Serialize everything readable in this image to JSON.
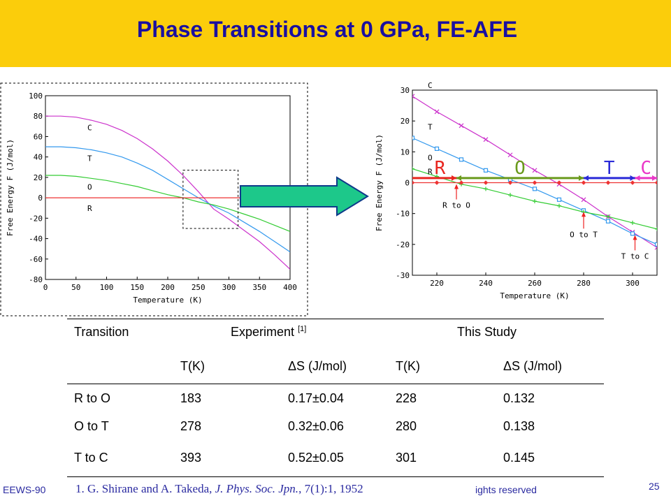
{
  "slide": {
    "title": "Phase Transitions at 0 GPa, FE-AFE",
    "page_number": "25",
    "footer_left": "EEWS-90",
    "footer_right": "ights reserved",
    "reference": {
      "number": "1.",
      "authors": "G. Shirane and A. Takeda,",
      "journal": "J. Phys. Soc. Jpn.",
      "details": ", 7(1):1, 1952"
    }
  },
  "colors": {
    "title_bar": "#fbcd0b",
    "title_text": "#1a0fa0",
    "C": "#cc33cc",
    "T": "#3399ee",
    "O": "#33cc33",
    "R": "#ee3333",
    "arrow_fill": "#1dc88a",
    "phase_R": "#e8261f",
    "phase_O": "#6a9a1c",
    "phase_T": "#2a2ad8",
    "phase_C": "#ea38c8"
  },
  "chart_data": [
    {
      "type": "line",
      "title": "",
      "xlabel": "Temperature (K)",
      "ylabel": "Free Energy F (J/mol)",
      "xlim": [
        0,
        400
      ],
      "ylim": [
        -80,
        100
      ],
      "xticks": [
        0,
        50,
        100,
        150,
        200,
        250,
        300,
        350,
        400
      ],
      "yticks": [
        -80,
        -60,
        -40,
        -20,
        0,
        20,
        40,
        60,
        80,
        100
      ],
      "grid": false,
      "legend": "inline labels at left",
      "x": [
        0,
        25,
        50,
        75,
        100,
        125,
        150,
        175,
        200,
        225,
        250,
        275,
        300,
        325,
        350,
        375,
        400
      ],
      "series": [
        {
          "name": "C",
          "values": [
            80,
            80,
            79,
            76,
            72,
            66,
            58,
            48,
            36,
            22,
            6,
            -11,
            -21,
            -32,
            -43,
            -56,
            -70
          ]
        },
        {
          "name": "T",
          "values": [
            50,
            50,
            49,
            47,
            44,
            40,
            34,
            27,
            18,
            9,
            0,
            -8,
            -15,
            -24,
            -33,
            -43,
            -53
          ]
        },
        {
          "name": "O",
          "values": [
            22,
            22,
            21,
            19,
            17,
            14,
            11,
            7,
            3,
            0,
            -4,
            -7,
            -11,
            -16,
            -21,
            -27,
            -33
          ]
        },
        {
          "name": "R",
          "values": [
            0,
            0,
            0,
            0,
            0,
            0,
            0,
            0,
            0,
            0,
            0,
            0,
            0,
            0,
            0,
            0,
            0
          ]
        }
      ]
    },
    {
      "type": "line",
      "title": "",
      "xlabel": "Temperature (K)",
      "ylabel": "Free Energy F (J/mol)",
      "xlim": [
        210,
        310
      ],
      "ylim": [
        -30,
        30
      ],
      "xticks": [
        220,
        240,
        260,
        280,
        300
      ],
      "yticks": [
        -30,
        -20,
        -10,
        0,
        10,
        20,
        30
      ],
      "grid": false,
      "legend": "inline labels at left",
      "x": [
        210,
        220,
        230,
        240,
        250,
        260,
        270,
        280,
        290,
        300,
        310
      ],
      "series": [
        {
          "name": "C",
          "marker": "x",
          "values": [
            28,
            23,
            18.5,
            14,
            9,
            4,
            -0.5,
            -5.5,
            -11,
            -16,
            -21
          ]
        },
        {
          "name": "T",
          "marker": "square",
          "values": [
            14.5,
            11,
            7.5,
            4,
            1,
            -2,
            -5.5,
            -9,
            -12.5,
            -16.5,
            -20
          ]
        },
        {
          "name": "O",
          "marker": "plus",
          "values": [
            4.5,
            2,
            -0.5,
            -2,
            -4,
            -6,
            -7.5,
            -9.5,
            -11,
            -13,
            -15
          ]
        },
        {
          "name": "R",
          "marker": "diamond",
          "values": [
            0,
            0,
            0,
            0,
            0,
            0,
            0,
            0,
            0,
            0,
            0
          ]
        }
      ],
      "annotations": [
        {
          "text": "R to O",
          "x": 228
        },
        {
          "text": "O to T",
          "x": 280
        },
        {
          "text": "T to C",
          "x": 301
        }
      ],
      "phase_ranges": [
        {
          "label": "R",
          "from": 210,
          "to": 228
        },
        {
          "label": "O",
          "from": 228,
          "to": 280
        },
        {
          "label": "T",
          "from": 280,
          "to": 301
        },
        {
          "label": "C",
          "from": 301,
          "to": 310
        }
      ]
    }
  ],
  "table": {
    "header": {
      "transition": "Transition",
      "experiment": "Experiment",
      "experiment_ref": "[1]",
      "this_study": "This Study"
    },
    "subheaders": [
      "T(K)",
      "ΔS (J/mol)",
      "T(K)",
      "ΔS (J/mol)"
    ],
    "rows": [
      {
        "transition": "R to O",
        "exp_t": "183",
        "exp_ds": "0.17±0.04",
        "study_t": "228",
        "study_ds": "0.132"
      },
      {
        "transition": "O to T",
        "exp_t": "278",
        "exp_ds": "0.32±0.06",
        "study_t": "280",
        "study_ds": "0.138"
      },
      {
        "transition": "T to C",
        "exp_t": "393",
        "exp_ds": "0.52±0.05",
        "study_t": "301",
        "study_ds": "0.145"
      }
    ]
  }
}
